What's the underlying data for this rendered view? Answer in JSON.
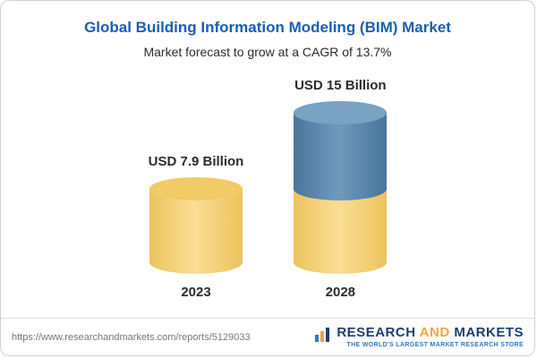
{
  "header": {
    "title": "Global Building Information Modeling (BIM) Market",
    "subtitle": "Market forecast to grow at a CAGR of 13.7%",
    "title_color": "#1a5fb0"
  },
  "chart_data": {
    "type": "bar",
    "bar_style": "3d-cylinder",
    "title": "Global Building Information Modeling (BIM) Market",
    "subtitle": "Market forecast to grow at a CAGR of 13.7%",
    "unit": "USD Billion",
    "categories": [
      "2023",
      "2028"
    ],
    "values": [
      7.9,
      15
    ],
    "value_labels": [
      "USD 7.9 Billion",
      "USD 15 Billion"
    ],
    "cagr_percent": 13.7,
    "segment_note": "2028 cylinder shows the 2023 base level in yellow with the growth portion in blue on top",
    "colors": {
      "base_segment": "#f5d26f",
      "growth_segment": "#5585ad"
    },
    "xlabel": "",
    "ylabel": "",
    "legend": "none",
    "grid": false
  },
  "footer": {
    "url": "https://www.researchandmarkets.com/reports/5129033",
    "logo": {
      "word1": "RESEARCH",
      "word2": "AND",
      "word3": "MARKETS",
      "tagline": "THE WORLD'S LARGEST MARKET RESEARCH STORE"
    }
  }
}
